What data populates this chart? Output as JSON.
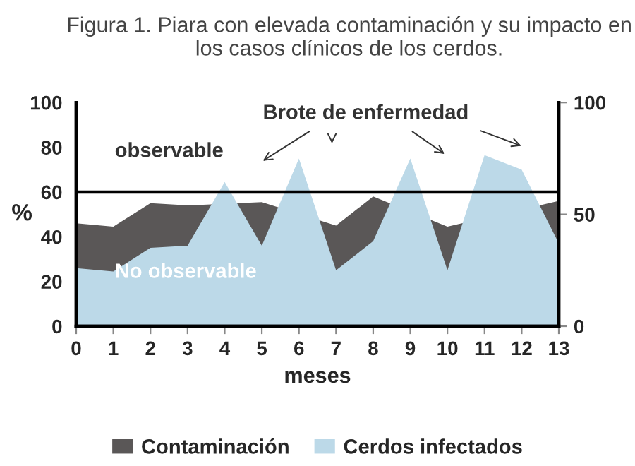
{
  "chart_data": {
    "type": "area",
    "title": "Figura 1. Piara con elevada contaminación y su impacto en los casos clínicos de los cerdos.",
    "xlabel": "meses",
    "ylabel": "%",
    "x": [
      0,
      1,
      2,
      3,
      4,
      5,
      6,
      7,
      8,
      9,
      10,
      11,
      12,
      13
    ],
    "series": [
      {
        "name": "Cerdos infectados",
        "color": "#bcd9e8",
        "values": [
          26,
          24.5,
          35,
          36,
          64.5,
          36,
          75,
          25,
          38,
          75,
          25,
          76.5,
          70,
          37
        ]
      },
      {
        "name": "Contaminación",
        "color": "#5a5757",
        "values": [
          46,
          44.5,
          55,
          54,
          null,
          55.5,
          null,
          45,
          58,
          null,
          44.5,
          null,
          null,
          56
        ]
      }
    ],
    "xlim": [
      0,
      13
    ],
    "xticks": [
      0,
      1,
      2,
      3,
      4,
      5,
      6,
      7,
      8,
      9,
      10,
      11,
      12,
      13
    ],
    "ylim": [
      0,
      100
    ],
    "yticks": [
      0,
      20,
      40,
      60,
      80,
      100
    ],
    "y2lim": [
      0,
      100
    ],
    "y2ticks": [
      0,
      50,
      100
    ],
    "ref_lines": [
      {
        "axis": "y",
        "value": 60,
        "color": "#000000"
      }
    ],
    "annotations": [
      "observable",
      "No observable",
      "Brote de enfermedad"
    ],
    "legend": "bottom",
    "grid": false
  }
}
